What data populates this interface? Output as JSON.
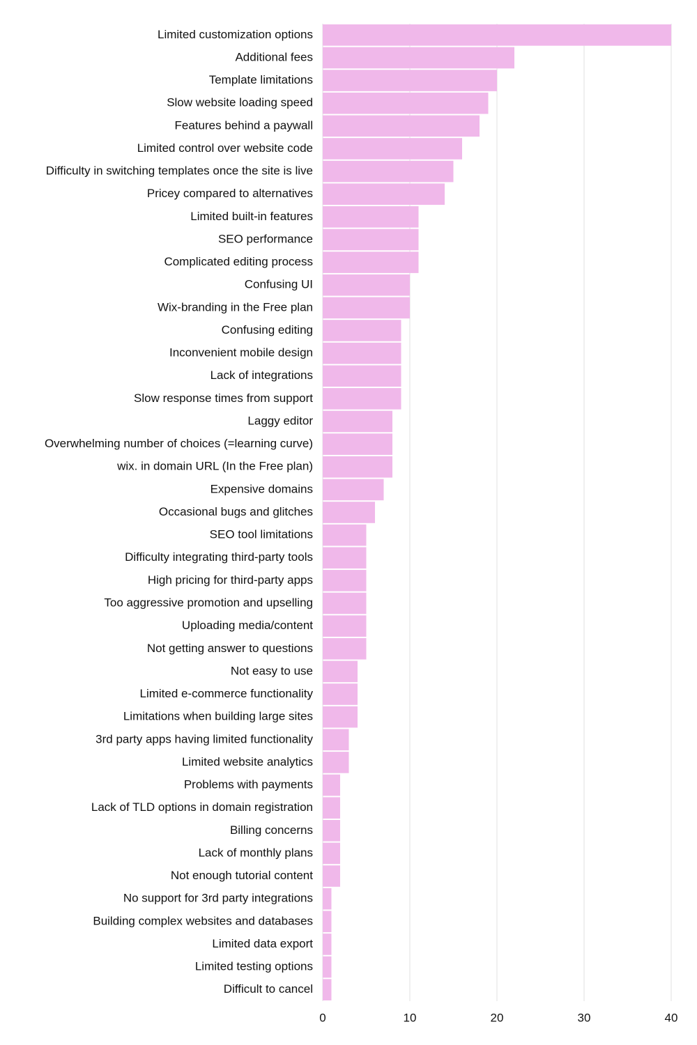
{
  "chart_data": {
    "type": "bar",
    "orientation": "horizontal",
    "title": "",
    "xlabel": "",
    "ylabel": "",
    "xlim": [
      0,
      40
    ],
    "xticks": [
      0,
      10,
      20,
      30,
      40
    ],
    "grid": true,
    "bar_color": "#f0b8ea",
    "categories": [
      "Limited customization options",
      "Additional fees",
      "Template limitations",
      "Slow website loading speed",
      "Features behind a paywall",
      "Limited control over website code",
      "Difficulty in switching templates once the site is live",
      "Pricey compared to alternatives",
      "Limited built-in features",
      "SEO performance",
      "Complicated editing process",
      "Confusing UI",
      "Wix-branding in the Free plan",
      "Confusing editing",
      "Inconvenient mobile design",
      "Lack of integrations",
      "Slow response times from support",
      "Laggy editor",
      "Overwhelming number of choices (=learning curve)",
      "wix. in domain URL (In the Free plan)",
      "Expensive domains",
      "Occasional bugs and glitches",
      "SEO tool limitations",
      "Difficulty integrating third-party tools",
      "High pricing for third-party apps",
      "Too aggressive promotion and upselling",
      "Uploading media/content",
      "Not getting answer to questions",
      "Not easy to use",
      "Limited e-commerce functionality",
      "Limitations when building large sites",
      "3rd party apps having limited functionality",
      "Limited website analytics",
      "Problems with payments",
      "Lack of TLD options in domain registration",
      "Billing concerns",
      "Lack of monthly plans",
      "Not enough tutorial content",
      "No support for 3rd party integrations",
      "Building complex websites and databases",
      "Limited data export",
      "Limited testing options",
      "Difficult to cancel"
    ],
    "values": [
      40,
      22,
      20,
      19,
      18,
      16,
      15,
      14,
      11,
      11,
      11,
      10,
      10,
      9,
      9,
      9,
      9,
      8,
      8,
      8,
      7,
      6,
      5,
      5,
      5,
      5,
      5,
      5,
      4,
      4,
      4,
      3,
      3,
      2,
      2,
      2,
      2,
      2,
      1,
      1,
      1,
      1,
      1
    ]
  }
}
